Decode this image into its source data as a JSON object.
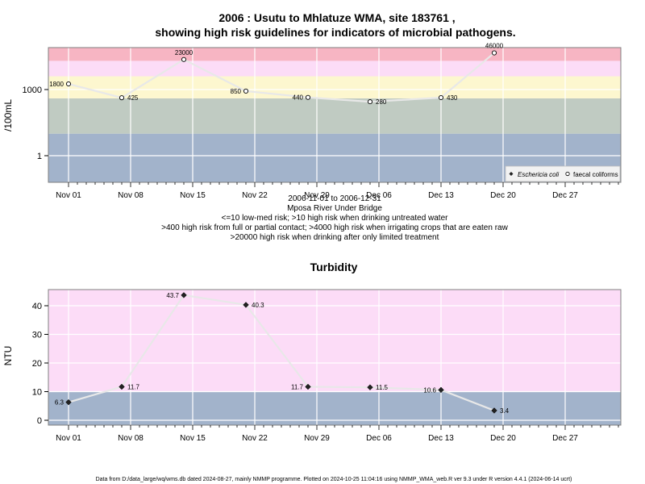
{
  "chart_data": [
    {
      "type": "line",
      "title": "2006 : Usutu to Mhlatuze WMA, site 183761 ,",
      "subtitle": "showing high risk guidelines for indicators of microbial pathogens.",
      "ylabel": "/100mL",
      "yscale": "log",
      "yticks": [
        {
          "value": 1,
          "label": "1"
        },
        {
          "value": 1000,
          "label": "1000"
        }
      ],
      "xticks": [
        "Nov 01",
        "Nov 08",
        "Nov 15",
        "Nov 22",
        "Nov 29",
        "Dec 06",
        "Dec 13",
        "Dec 20",
        "Dec 27"
      ],
      "date_range": "2006-11-01 to 2006-12-31",
      "location": "Mposa River Under Bridge",
      "notes": [
        "<=10 low-med risk; >10 high risk when drinking untreated water",
        ">400 high risk from full or partial contact; >4000 high risk when irrigating crops that are eaten raw",
        ">20000 high risk when drinking after only limited treatment"
      ],
      "legend": {
        "position": "bottom-right",
        "entries": [
          "Eschericia coli",
          "faecal coliforms"
        ]
      },
      "grid": true,
      "risk_bands": [
        {
          "from": 0.02,
          "to": 10,
          "color": "#a2b3cb"
        },
        {
          "from": 10,
          "to": 400,
          "color": "#c0cbc2"
        },
        {
          "from": 400,
          "to": 4000,
          "color": "#fdf7cf"
        },
        {
          "from": 4000,
          "to": 20000,
          "color": "#fcdcf7"
        },
        {
          "from": 20000,
          "to": 120000,
          "color": "#f7b5c3"
        }
      ],
      "series": [
        {
          "name": "faecal coliforms",
          "x": [
            "2006-11-01",
            "2006-11-07",
            "2006-11-14",
            "2006-11-21",
            "2006-11-28",
            "2006-12-05",
            "2006-12-13",
            "2006-12-19"
          ],
          "values": [
            1800,
            425,
            23000,
            850,
            440,
            280,
            430,
            46000
          ],
          "labels": [
            "1800",
            "425",
            "23000",
            "850",
            "440",
            "280",
            "430",
            "46000"
          ]
        }
      ]
    },
    {
      "type": "line",
      "title": "Turbidity",
      "ylabel": "NTU",
      "ylim": [
        -2,
        46
      ],
      "yticks": [
        0,
        10,
        20,
        30,
        40
      ],
      "xticks": [
        "Nov 01",
        "Nov 08",
        "Nov 15",
        "Nov 22",
        "Nov 29",
        "Dec 06",
        "Dec 13",
        "Dec 20",
        "Dec 27"
      ],
      "grid": true,
      "risk_bands": [
        {
          "from": -2,
          "to": 10,
          "color": "#a2b3cb"
        },
        {
          "from": 10,
          "to": 46,
          "color": "#fcdcf7"
        }
      ],
      "series": [
        {
          "x": [
            "2006-11-01",
            "2006-11-07",
            "2006-11-14",
            "2006-11-21",
            "2006-11-28",
            "2006-12-05",
            "2006-12-13",
            "2006-12-19"
          ],
          "values": [
            6.3,
            11.7,
            43.7,
            40.3,
            11.7,
            11.5,
            10.6,
            3.4
          ],
          "labels": [
            "6.3",
            "11.7",
            "43.7",
            "40.3",
            "11.7",
            "11.5",
            "10.6",
            "3.4"
          ]
        }
      ]
    }
  ],
  "footer": "Data from D:/data_large/wq/wms.db dated 2024-08-27, mainly NMMP programme. Plotted on 2024-10-25 11:04:16 using NMMP_WMA_web.R ver 9.3 under R version 4.4.1 (2024-06-14 ucrt)"
}
